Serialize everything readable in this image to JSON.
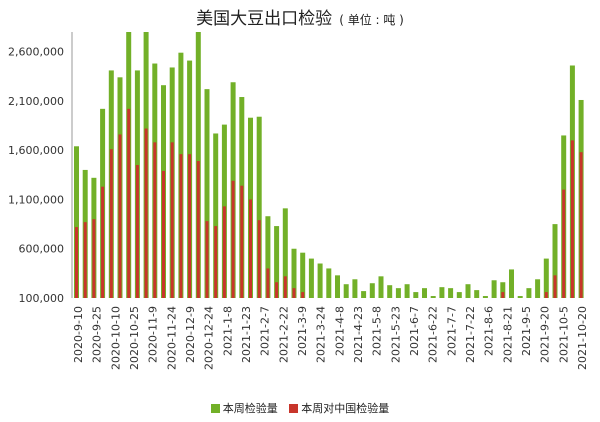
{
  "chart_data": {
    "type": "bar",
    "title": "美国大豆出口检验",
    "subtitle": "( 单位 : 吨 )",
    "xlabel": "",
    "ylabel": "",
    "ylim": [
      100000,
      2800000
    ],
    "yticks": [
      100000,
      600000,
      1100000,
      1600000,
      2100000,
      2600000
    ],
    "ytick_labels": [
      "100,000",
      "600,000",
      "1,100,000",
      "1,600,000",
      "2,100,000",
      "2,600,000"
    ],
    "grid": false,
    "legend_position": "bottom",
    "x_tick_labels": [
      "2020-9-10",
      "2020-9-25",
      "2020-10-10",
      "2020-10-25",
      "2020-11-9",
      "2020-11-24",
      "2020-12-9",
      "2020-12-24",
      "2021-1-8",
      "2021-1-23",
      "2021-2-7",
      "2021-2-22",
      "2021-3-9",
      "2021-3-24",
      "2021-4-8",
      "2021-4-23",
      "2021-5-8",
      "2021-5-23",
      "2021-6-7",
      "2021-6-22",
      "2021-7-7",
      "2021-7-22",
      "2021-8-6",
      "2021-8-21",
      "2021-9-5",
      "2021-9-20",
      "2021-10-5",
      "2021-10-20"
    ],
    "series": [
      {
        "name": "本周检验量",
        "color": "#72b028",
        "values": [
          1640000,
          1400000,
          1320000,
          2020000,
          2410000,
          2340000,
          2800000,
          2410000,
          2800000,
          2480000,
          2260000,
          2440000,
          2590000,
          2510000,
          2800000,
          2220000,
          1770000,
          1860000,
          2290000,
          2140000,
          1930000,
          1940000,
          930000,
          830000,
          1010000,
          600000,
          560000,
          500000,
          450000,
          400000,
          330000,
          240000,
          290000,
          170000,
          250000,
          320000,
          230000,
          200000,
          240000,
          160000,
          200000,
          120000,
          210000,
          200000,
          160000,
          240000,
          180000,
          120000,
          280000,
          260000,
          390000,
          120000,
          200000,
          290000,
          500000,
          850000,
          1750000,
          2460000,
          2110000
        ]
      },
      {
        "name": "本周对中国检验量",
        "color": "#c8352b",
        "values": [
          820000,
          870000,
          900000,
          1230000,
          1610000,
          1760000,
          2020000,
          1450000,
          1820000,
          1680000,
          1390000,
          1680000,
          1560000,
          1560000,
          1490000,
          880000,
          830000,
          1030000,
          1290000,
          1240000,
          1100000,
          890000,
          400000,
          260000,
          320000,
          200000,
          160000,
          0,
          0,
          0,
          0,
          0,
          0,
          0,
          0,
          0,
          0,
          0,
          0,
          0,
          0,
          0,
          0,
          0,
          0,
          0,
          0,
          0,
          0,
          160000,
          0,
          0,
          0,
          0,
          160000,
          330000,
          1200000,
          1700000,
          1580000
        ]
      }
    ]
  }
}
